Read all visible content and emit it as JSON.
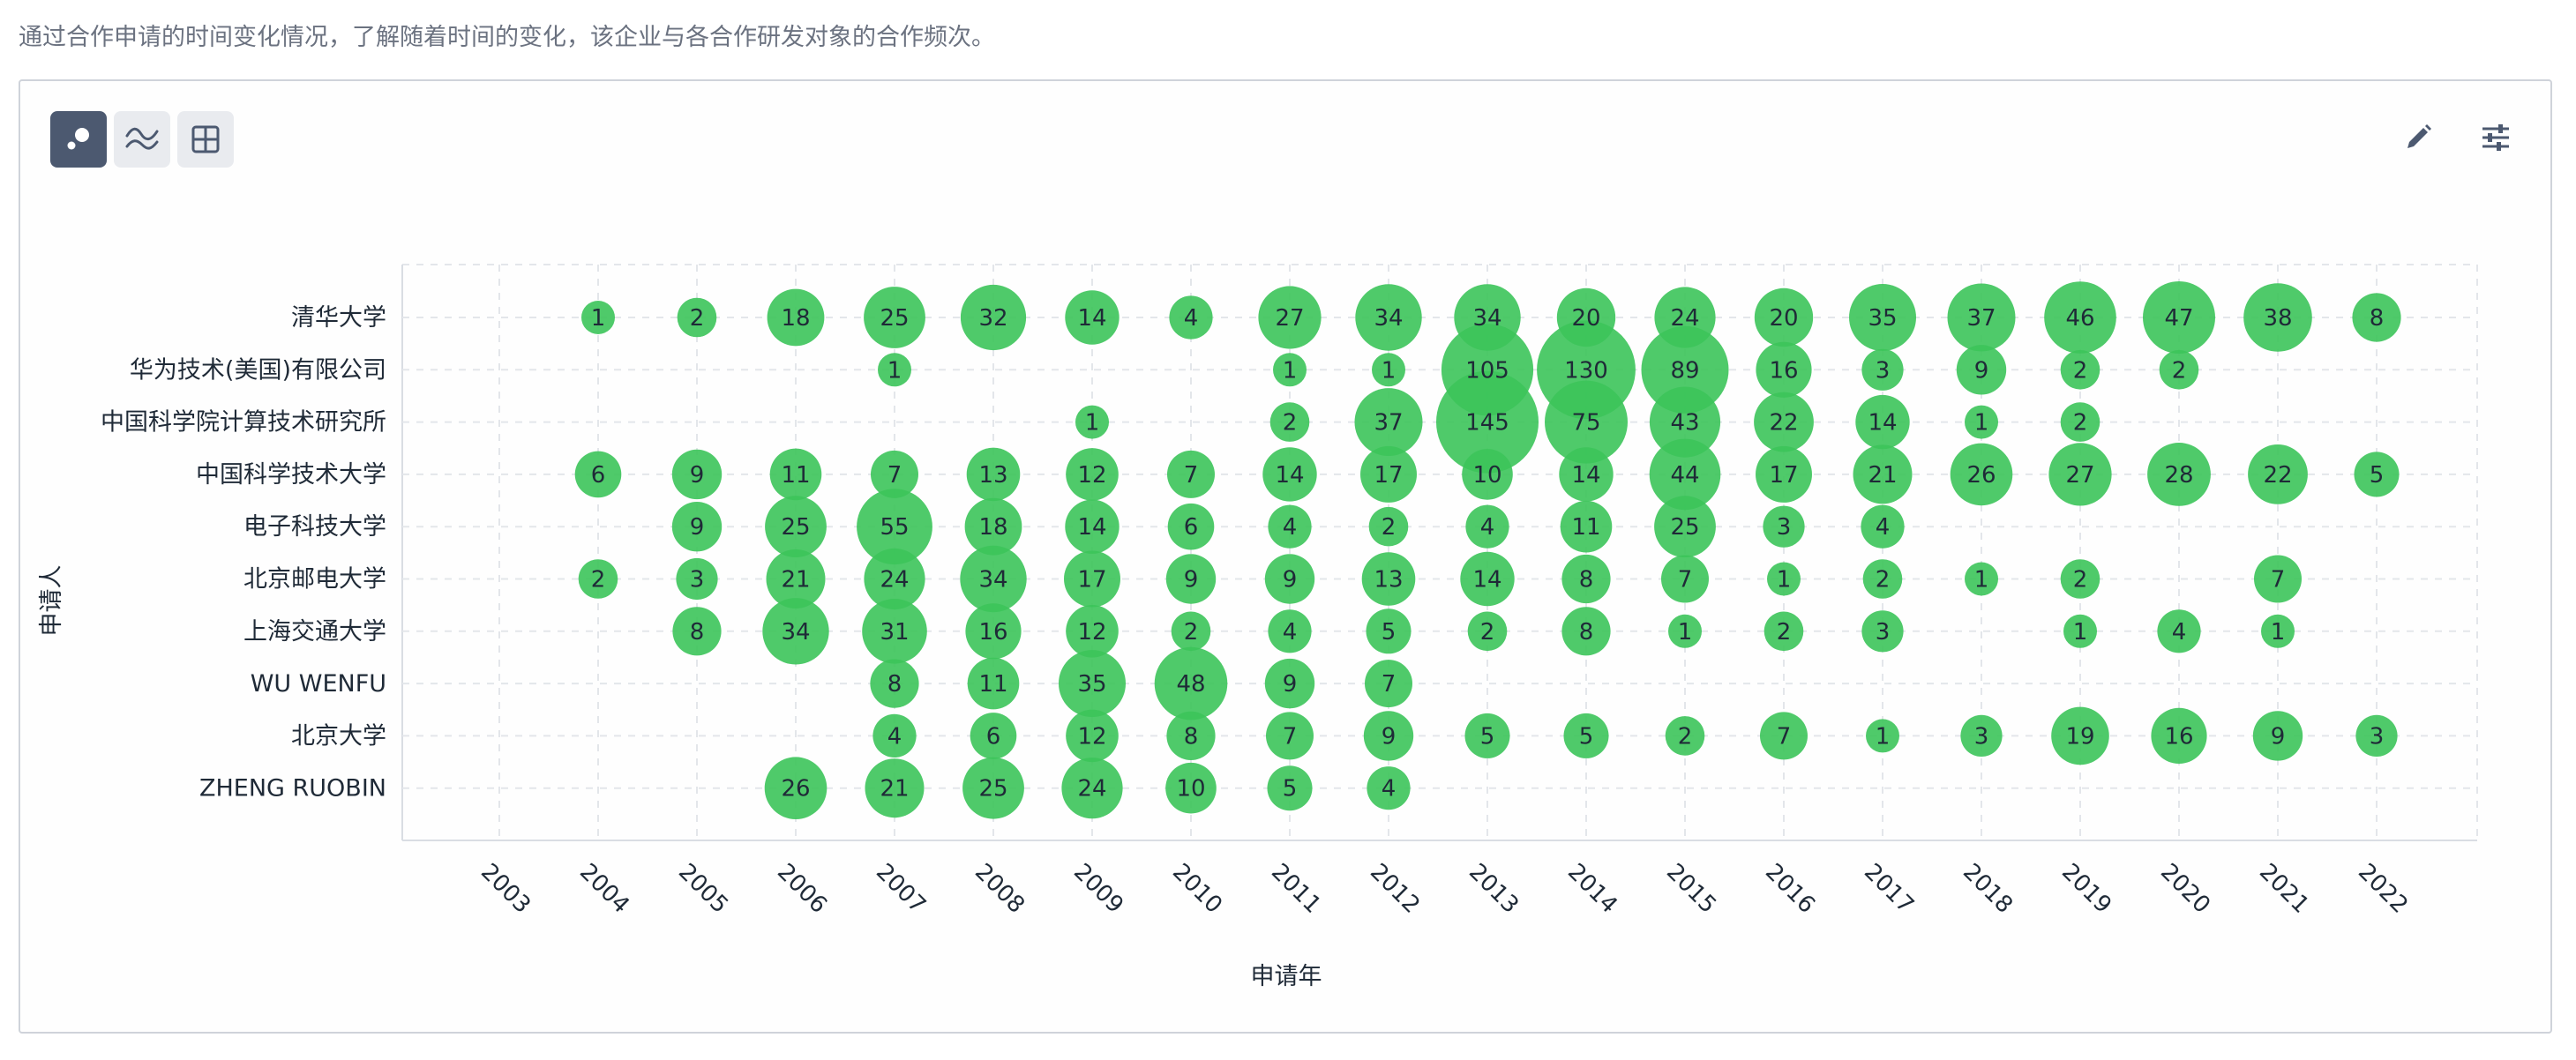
{
  "description": "通过合作申请的时间变化情况，了解随着时间的变化，该企业与各合作研发对象的合作频次。",
  "toolbar": {
    "buttons": [
      {
        "name": "bubble-chart-view-button",
        "icon": "bubble-icon",
        "active": true
      },
      {
        "name": "line-chart-view-button",
        "icon": "wave-lines-icon",
        "active": false
      },
      {
        "name": "table-view-button",
        "icon": "grid-table-icon",
        "active": false
      }
    ],
    "right_buttons": [
      {
        "name": "edit-button",
        "icon": "pencil-icon"
      },
      {
        "name": "settings-button",
        "icon": "sliders-icon"
      }
    ]
  },
  "colors": {
    "bubble": "#3cc45a",
    "grid": "#e3e6ea",
    "text": "#1f2a37",
    "toolbar_active": "#4c5970",
    "toolbar_inactive": "#e9ebef"
  },
  "chart_data": {
    "type": "scatter",
    "subtype": "bubble",
    "xlabel": "申请年",
    "ylabel": "申请人",
    "x": [
      "2003",
      "2004",
      "2005",
      "2006",
      "2007",
      "2008",
      "2009",
      "2010",
      "2011",
      "2012",
      "2013",
      "2014",
      "2015",
      "2016",
      "2017",
      "2018",
      "2019",
      "2020",
      "2021",
      "2022"
    ],
    "categories": [
      "清华大学",
      "华为技术(美国)有限公司",
      "中国科学院计算技术研究所",
      "中国科学技术大学",
      "电子科技大学",
      "北京邮电大学",
      "上海交通大学",
      "WU WENFU",
      "北京大学",
      "ZHENG RUOBIN"
    ],
    "grid": true,
    "series": [
      {
        "category": "清华大学",
        "values": [
          null,
          1,
          2,
          18,
          25,
          32,
          14,
          4,
          27,
          34,
          34,
          20,
          24,
          20,
          35,
          37,
          46,
          47,
          38,
          8
        ]
      },
      {
        "category": "华为技术(美国)有限公司",
        "values": [
          null,
          null,
          null,
          null,
          1,
          null,
          null,
          null,
          1,
          1,
          105,
          130,
          89,
          16,
          3,
          9,
          2,
          2,
          null,
          null
        ]
      },
      {
        "category": "中国科学院计算技术研究所",
        "values": [
          null,
          null,
          null,
          null,
          null,
          null,
          1,
          null,
          2,
          37,
          145,
          75,
          43,
          22,
          14,
          1,
          2,
          null,
          null,
          null
        ]
      },
      {
        "category": "中国科学技术大学",
        "values": [
          null,
          6,
          9,
          11,
          7,
          13,
          12,
          7,
          14,
          17,
          10,
          14,
          44,
          17,
          21,
          26,
          27,
          28,
          22,
          5
        ]
      },
      {
        "category": "电子科技大学",
        "values": [
          null,
          null,
          9,
          25,
          55,
          18,
          14,
          6,
          4,
          2,
          4,
          11,
          25,
          3,
          4,
          null,
          null,
          null,
          null,
          null
        ]
      },
      {
        "category": "北京邮电大学",
        "values": [
          null,
          2,
          3,
          21,
          24,
          34,
          17,
          9,
          9,
          13,
          14,
          8,
          7,
          1,
          2,
          1,
          2,
          null,
          7,
          null
        ]
      },
      {
        "category": "上海交通大学",
        "values": [
          null,
          null,
          8,
          34,
          31,
          16,
          12,
          2,
          4,
          5,
          2,
          8,
          1,
          2,
          3,
          null,
          1,
          4,
          1,
          null
        ]
      },
      {
        "category": "WU WENFU",
        "values": [
          null,
          null,
          null,
          null,
          8,
          11,
          35,
          48,
          9,
          7,
          null,
          null,
          null,
          null,
          null,
          null,
          null,
          null,
          null,
          null
        ]
      },
      {
        "category": "北京大学",
        "values": [
          null,
          null,
          null,
          null,
          4,
          6,
          12,
          8,
          7,
          9,
          5,
          5,
          2,
          7,
          1,
          3,
          19,
          16,
          9,
          3
        ]
      },
      {
        "category": "ZHENG RUOBIN",
        "values": [
          null,
          null,
          null,
          26,
          21,
          25,
          24,
          10,
          5,
          4,
          null,
          null,
          null,
          null,
          null,
          null,
          null,
          null,
          null,
          null
        ]
      }
    ]
  }
}
